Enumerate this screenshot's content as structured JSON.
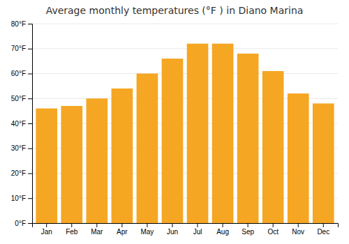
{
  "chart_data": {
    "type": "bar",
    "title": "Average monthly temperatures (°F ) in Diano Marina",
    "categories": [
      "Jan",
      "Feb",
      "Mar",
      "Apr",
      "May",
      "Jun",
      "Jul",
      "Aug",
      "Sep",
      "Oct",
      "Nov",
      "Dec"
    ],
    "values": [
      46,
      47,
      50,
      54,
      60,
      66,
      72,
      72,
      68,
      61,
      52,
      48
    ],
    "color": "#F5A623",
    "ylim": [
      0,
      80
    ],
    "yticks": [
      {
        "value": 0,
        "label": "0°F"
      },
      {
        "value": 10,
        "label": "10°F"
      },
      {
        "value": 20,
        "label": "20°F"
      },
      {
        "value": 30,
        "label": "30°F"
      },
      {
        "value": 40,
        "label": "40°F"
      },
      {
        "value": 50,
        "label": "50°F"
      },
      {
        "value": 60,
        "label": "60°F"
      },
      {
        "value": 70,
        "label": "70°F"
      },
      {
        "value": 80,
        "label": "80°F"
      }
    ],
    "grid": true
  }
}
